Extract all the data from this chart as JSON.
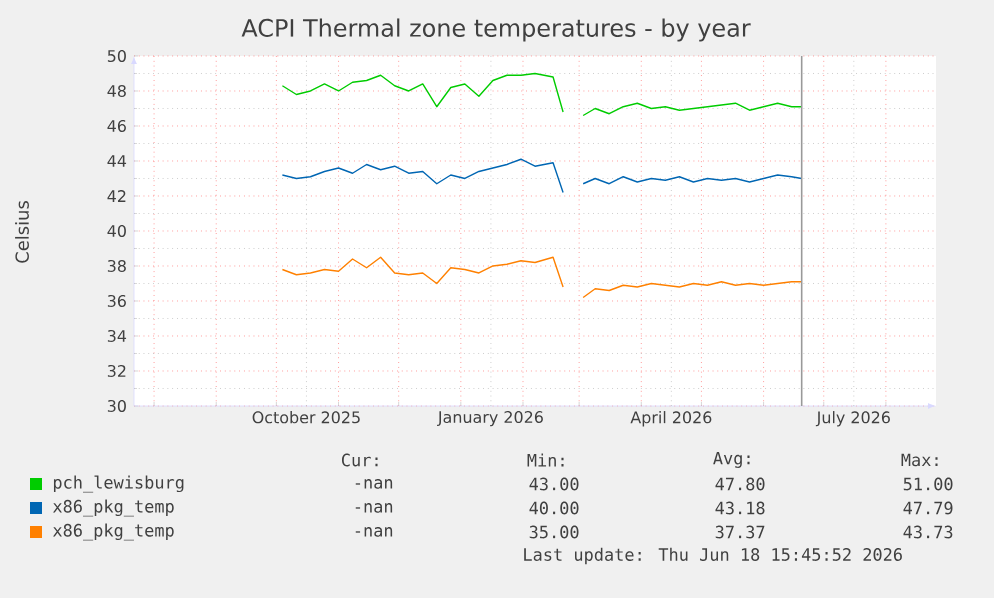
{
  "chart_data": {
    "type": "line",
    "title": "ACPI Thermal zone temperatures - by year",
    "ylabel": "Celsius",
    "x": [
      "2025-10-04",
      "2025-10-11",
      "2025-10-18",
      "2025-10-25",
      "2025-11-01",
      "2025-11-08",
      "2025-11-15",
      "2025-11-22",
      "2025-11-29",
      "2025-12-06",
      "2025-12-13",
      "2025-12-20",
      "2025-12-27",
      "2026-01-03",
      "2026-01-10",
      "2026-01-17",
      "2026-01-24",
      "2026-01-31",
      "2026-02-07",
      "2026-02-16",
      "2026-02-21",
      "2026-02-26",
      "2026-03-03",
      "2026-03-09",
      "2026-03-16",
      "2026-03-23",
      "2026-03-30",
      "2026-04-06",
      "2026-04-13",
      "2026-04-20",
      "2026-04-27",
      "2026-05-04",
      "2026-05-11",
      "2026-05-18",
      "2026-05-25",
      "2026-06-01",
      "2026-06-08",
      "2026-06-15",
      "2026-06-20"
    ],
    "series": [
      {
        "name": "pch_lewisburg",
        "color": "#00cc00",
        "values": [
          48.3,
          47.8,
          48.0,
          48.4,
          48.0,
          48.5,
          48.6,
          48.9,
          48.3,
          48.0,
          48.4,
          47.1,
          48.2,
          48.4,
          47.7,
          48.6,
          48.9,
          48.9,
          49.0,
          48.8,
          46.8,
          null,
          46.6,
          47.0,
          46.7,
          47.1,
          47.3,
          47.0,
          47.1,
          46.9,
          47.0,
          47.1,
          47.2,
          47.3,
          46.9,
          47.1,
          47.3,
          47.1,
          47.1
        ]
      },
      {
        "name": "x86_pkg_temp",
        "color": "#0066b3",
        "values": [
          43.2,
          43.0,
          43.1,
          43.4,
          43.6,
          43.3,
          43.8,
          43.5,
          43.7,
          43.3,
          43.4,
          42.7,
          43.2,
          43.0,
          43.4,
          43.6,
          43.8,
          44.1,
          43.7,
          43.9,
          42.2,
          null,
          42.7,
          43.0,
          42.7,
          43.1,
          42.8,
          43.0,
          42.9,
          43.1,
          42.8,
          43.0,
          42.9,
          43.0,
          42.8,
          43.0,
          43.2,
          43.1,
          43.0
        ]
      },
      {
        "name": "x86_pkg_temp",
        "color": "#ff8000",
        "values": [
          37.8,
          37.5,
          37.6,
          37.8,
          37.7,
          38.4,
          37.9,
          38.5,
          37.6,
          37.5,
          37.6,
          37.0,
          37.9,
          37.8,
          37.6,
          38.0,
          38.1,
          38.3,
          38.2,
          38.5,
          36.8,
          null,
          36.2,
          36.7,
          36.6,
          36.9,
          36.8,
          37.0,
          36.9,
          36.8,
          37.0,
          36.9,
          37.1,
          36.9,
          37.0,
          36.9,
          37.0,
          37.1,
          37.1
        ]
      }
    ],
    "xlim": [
      "2025-07-22",
      "2026-08-26"
    ],
    "xticks": [
      {
        "value": "2025-08-01",
        "label": null
      },
      {
        "value": "2025-09-01",
        "label": null
      },
      {
        "value": "2025-10-01",
        "label": null
      },
      {
        "value": "2025-11-01",
        "label": null
      },
      {
        "value": "2025-12-01",
        "label": null
      },
      {
        "value": "2026-01-01",
        "label": null
      },
      {
        "value": "2026-02-01",
        "label": null
      },
      {
        "value": "2026-03-01",
        "label": null
      },
      {
        "value": "2026-04-01",
        "label": null
      },
      {
        "value": "2026-05-01",
        "label": null
      },
      {
        "value": "2026-06-01",
        "label": null
      },
      {
        "value": "2026-07-01",
        "label": null
      },
      {
        "value": "2026-08-01",
        "label": null
      },
      {
        "value": "2025-10-16",
        "label": "October 2025"
      },
      {
        "value": "2026-01-16",
        "label": "January 2026"
      },
      {
        "value": "2026-04-16",
        "label": "April 2026"
      },
      {
        "value": "2026-07-16",
        "label": "July 2026"
      }
    ],
    "ylim": [
      30,
      50
    ],
    "yticks": [
      30,
      {
        "value": 31,
        "label": null
      },
      32,
      {
        "value": 33,
        "label": null
      },
      34,
      {
        "value": 35,
        "label": null
      },
      36,
      {
        "value": 37,
        "label": null
      },
      38,
      {
        "value": 39,
        "label": null
      },
      40,
      {
        "value": 41,
        "label": null
      },
      42,
      {
        "value": 43,
        "label": null
      },
      44,
      {
        "value": 45,
        "label": null
      },
      46,
      {
        "value": 47,
        "label": null
      },
      48,
      {
        "value": 49,
        "label": null
      },
      50
    ],
    "grid": true,
    "legend": "bottom",
    "ref_lines": [
      {
        "axis": "x",
        "value": "2026-06-20",
        "color": "#999999"
      }
    ],
    "annotations": [
      "Cur:",
      "Min:",
      "Avg:",
      "Max:",
      "-nan",
      "43.00",
      "47.80",
      "51.00",
      "-nan",
      "40.00",
      "43.18",
      "47.79",
      "-nan",
      "35.00",
      "37.37",
      "43.73",
      "Last update: Thu Jun 18 15:45:52 2026"
    ]
  }
}
